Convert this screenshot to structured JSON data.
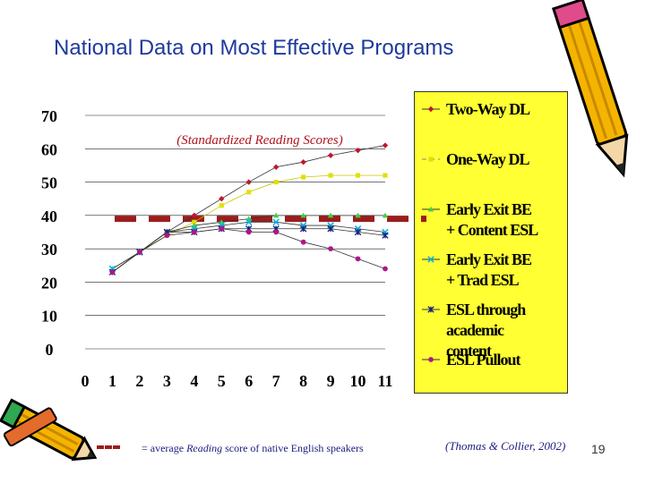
{
  "title": "National Data on Most Effective Programs",
  "chart_data": {
    "type": "line",
    "title": "(Standardized Reading Scores)",
    "x": [
      1,
      2,
      3,
      4,
      5,
      6,
      7,
      8,
      9,
      10,
      11
    ],
    "x_ticks": [
      "0",
      "1",
      "2",
      "3",
      "4",
      "5",
      "6",
      "7",
      "8",
      "9",
      "10",
      "11"
    ],
    "xlim": [
      0,
      11
    ],
    "y_ticks": [
      "0",
      "10",
      "20",
      "30",
      "40",
      "50",
      "60",
      "70"
    ],
    "ylim": [
      0,
      70
    ],
    "grid": true,
    "legend_position": "right",
    "series": [
      {
        "name": "Two-Way DL",
        "color": "#c0162f",
        "marker": "diamond",
        "values": [
          23,
          29,
          35,
          40,
          45,
          50,
          54.5,
          56,
          58,
          59.5,
          61
        ]
      },
      {
        "name": "One-Way DL",
        "color": "#e0e000",
        "marker": "square",
        "values": [
          23,
          29,
          34,
          38,
          43,
          47,
          50,
          51.5,
          52,
          52,
          52
        ]
      },
      {
        "name": "Early Exit BE + Content ESL",
        "color": "#40d040",
        "marker": "triangle",
        "values": [
          24,
          29,
          35,
          37,
          38,
          39,
          40,
          40,
          40,
          40,
          40
        ]
      },
      {
        "name": "Early Exit BE + Trad ESL",
        "color": "#00b8e8",
        "marker": "cross",
        "values": [
          24,
          29,
          35,
          36,
          37,
          38,
          38,
          37,
          37,
          36,
          35
        ]
      },
      {
        "name": "ESL through academic content",
        "color": "#1a237e",
        "marker": "star",
        "values": [
          23,
          29,
          35,
          35,
          36,
          36,
          36,
          36,
          36,
          35,
          34
        ]
      },
      {
        "name": "ESL Pullout",
        "color": "#b0148c",
        "marker": "circle",
        "values": [
          23,
          29,
          34,
          35,
          36,
          35,
          35,
          32,
          30,
          27,
          24
        ]
      }
    ],
    "reference_line": {
      "value": 39,
      "color": "#9b1d1d",
      "label": "= average Reading score of native English speakers"
    }
  },
  "footnote": {
    "prefix": "= average ",
    "emph": "Reading",
    "suffix": " score of native English speakers"
  },
  "citation": "(Thomas & Collier, 2002)",
  "page_number": "19",
  "icons": [
    "pencil-icon-top-right",
    "pencil-icon-bottom-left"
  ]
}
